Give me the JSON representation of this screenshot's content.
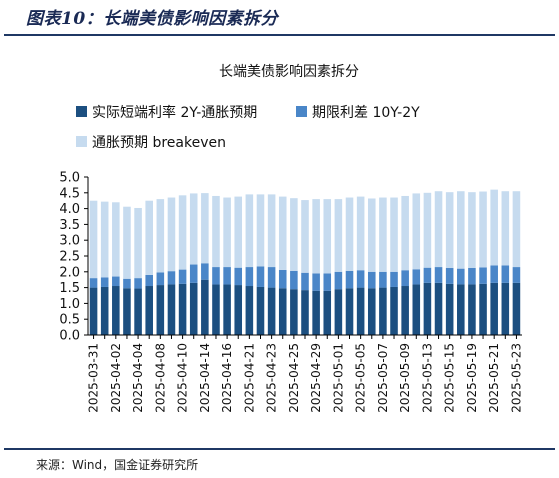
{
  "figure": {
    "title": "图表10：长端美债影响因素拆分",
    "source": "来源：Wind，国金证券研究所"
  },
  "colors": {
    "accent": "#1f3864",
    "rate_diff": "#1c4f80",
    "term_spread": "#4a86c8",
    "breakeven": "#c6dbef"
  },
  "chart_data": {
    "type": "bar",
    "stacked": true,
    "title": "长端美债影响因素拆分",
    "xlabel": "",
    "ylabel": "",
    "ylim": [
      0,
      5.0
    ],
    "yticks": [
      "0.0",
      "0.5",
      "1.0",
      "1.5",
      "2.0",
      "2.5",
      "3.0",
      "3.5",
      "4.0",
      "4.5",
      "5.0"
    ],
    "legend_position": "top-left",
    "grid": false,
    "categories": [
      "2025-03-31",
      "2025-04-01",
      "2025-04-02",
      "2025-04-03",
      "2025-04-04",
      "2025-04-07",
      "2025-04-08",
      "2025-04-09",
      "2025-04-10",
      "2025-04-11",
      "2025-04-14",
      "2025-04-15",
      "2025-04-16",
      "2025-04-17",
      "2025-04-21",
      "2025-04-22",
      "2025-04-23",
      "2025-04-24",
      "2025-04-25",
      "2025-04-28",
      "2025-04-29",
      "2025-04-30",
      "2025-05-01",
      "2025-05-02",
      "2025-05-05",
      "2025-05-06",
      "2025-05-07",
      "2025-05-08",
      "2025-05-09",
      "2025-05-12",
      "2025-05-13",
      "2025-05-14",
      "2025-05-15",
      "2025-05-16",
      "2025-05-19",
      "2025-05-20",
      "2025-05-21",
      "2025-05-22",
      "2025-05-23"
    ],
    "xtick_labels": [
      "2025-03-31",
      "",
      "2025-04-02",
      "",
      "2025-04-04",
      "",
      "2025-04-08",
      "",
      "2025-04-10",
      "",
      "2025-04-14",
      "",
      "2025-04-16",
      "",
      "2025-04-21",
      "",
      "2025-04-23",
      "",
      "2025-04-25",
      "",
      "2025-04-29",
      "",
      "2025-05-01",
      "",
      "2025-05-05",
      "",
      "2025-05-07",
      "",
      "2025-05-09",
      "",
      "2025-05-13",
      "",
      "2025-05-15",
      "",
      "2025-05-19",
      "",
      "2025-05-21",
      "",
      "2025-05-23"
    ],
    "series": [
      {
        "name": "实际短端利率 2Y-通胀预期",
        "color": "#1c4f80",
        "values": [
          1.5,
          1.52,
          1.55,
          1.48,
          1.47,
          1.55,
          1.58,
          1.6,
          1.62,
          1.65,
          1.75,
          1.6,
          1.6,
          1.58,
          1.55,
          1.52,
          1.5,
          1.48,
          1.45,
          1.42,
          1.4,
          1.4,
          1.45,
          1.48,
          1.5,
          1.48,
          1.5,
          1.52,
          1.55,
          1.6,
          1.65,
          1.65,
          1.62,
          1.6,
          1.6,
          1.62,
          1.65,
          1.65,
          1.65
        ]
      },
      {
        "name": "期限利差 10Y-2Y",
        "color": "#4a86c8",
        "values": [
          0.3,
          0.3,
          0.3,
          0.3,
          0.33,
          0.35,
          0.4,
          0.42,
          0.45,
          0.58,
          0.52,
          0.55,
          0.55,
          0.55,
          0.6,
          0.65,
          0.65,
          0.58,
          0.58,
          0.55,
          0.55,
          0.55,
          0.55,
          0.55,
          0.55,
          0.52,
          0.5,
          0.48,
          0.5,
          0.48,
          0.48,
          0.5,
          0.5,
          0.5,
          0.52,
          0.52,
          0.55,
          0.55,
          0.5
        ]
      },
      {
        "name": "通胀预期 breakeven",
        "color": "#c6dbef",
        "values": [
          2.45,
          2.4,
          2.35,
          2.28,
          2.22,
          2.35,
          2.32,
          2.33,
          2.35,
          2.25,
          2.22,
          2.25,
          2.2,
          2.25,
          2.3,
          2.28,
          2.3,
          2.32,
          2.3,
          2.3,
          2.35,
          2.35,
          2.3,
          2.32,
          2.33,
          2.32,
          2.35,
          2.35,
          2.35,
          2.4,
          2.37,
          2.4,
          2.4,
          2.45,
          2.4,
          2.4,
          2.4,
          2.35,
          2.4
        ]
      }
    ]
  }
}
